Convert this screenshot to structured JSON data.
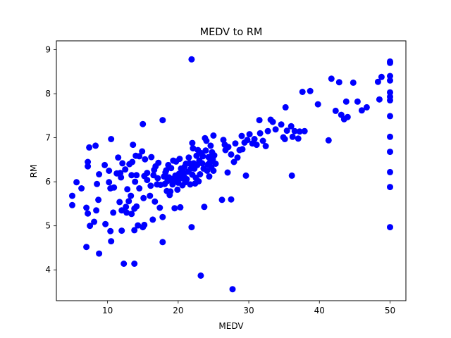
{
  "chart_data": {
    "type": "scatter",
    "title": "MEDV to RM",
    "xlabel": "MEDV",
    "ylabel": "RM",
    "xlim": [
      2.75,
      52.25
    ],
    "ylim": [
      3.3,
      9.2
    ],
    "xticks": [
      10,
      20,
      30,
      40,
      50
    ],
    "yticks": [
      4,
      5,
      6,
      7,
      8,
      9
    ],
    "grid": false,
    "marker_color": "#0000ff",
    "points": [
      [
        5.0,
        5.68
      ],
      [
        5.0,
        5.47
      ],
      [
        5.6,
        5.99
      ],
      [
        6.3,
        5.85
      ],
      [
        7.0,
        4.52
      ],
      [
        7.0,
        5.41
      ],
      [
        7.2,
        5.28
      ],
      [
        7.2,
        6.45
      ],
      [
        7.2,
        6.35
      ],
      [
        7.4,
        6.78
      ],
      [
        7.5,
        5.0
      ],
      [
        8.1,
        5.09
      ],
      [
        8.3,
        6.82
      ],
      [
        8.4,
        5.35
      ],
      [
        8.5,
        5.95
      ],
      [
        8.7,
        5.59
      ],
      [
        8.8,
        6.17
      ],
      [
        8.8,
        4.37
      ],
      [
        9.6,
        6.38
      ],
      [
        9.7,
        5.04
      ],
      [
        10.2,
        5.99
      ],
      [
        10.2,
        6.25
      ],
      [
        10.4,
        5.85
      ],
      [
        10.4,
        4.88
      ],
      [
        10.5,
        6.97
      ],
      [
        10.5,
        4.65
      ],
      [
        10.8,
        5.3
      ],
      [
        10.9,
        5.87
      ],
      [
        11.3,
        6.19
      ],
      [
        11.5,
        6.55
      ],
      [
        11.7,
        5.54
      ],
      [
        11.8,
        6.2
      ],
      [
        11.9,
        6.1
      ],
      [
        12.0,
        5.35
      ],
      [
        12.0,
        4.89
      ],
      [
        12.1,
        6.42
      ],
      [
        12.3,
        4.14
      ],
      [
        12.5,
        6.28
      ],
      [
        12.6,
        5.43
      ],
      [
        12.7,
        5.3
      ],
      [
        12.8,
        5.83
      ],
      [
        13.0,
        5.56
      ],
      [
        13.1,
        6.4
      ],
      [
        13.3,
        5.68
      ],
      [
        13.4,
        6.15
      ],
      [
        13.4,
        5.27
      ],
      [
        13.5,
        6.45
      ],
      [
        13.6,
        6.84
      ],
      [
        13.8,
        4.14
      ],
      [
        13.8,
        4.9
      ],
      [
        13.8,
        5.39
      ],
      [
        13.9,
        6.0
      ],
      [
        14.0,
        6.59
      ],
      [
        14.1,
        6.15
      ],
      [
        14.1,
        5.44
      ],
      [
        14.3,
        5.01
      ],
      [
        14.5,
        5.85
      ],
      [
        14.5,
        6.58
      ],
      [
        14.9,
        6.69
      ],
      [
        15.0,
        4.97
      ],
      [
        15.0,
        7.31
      ],
      [
        15.1,
        5.63
      ],
      [
        15.2,
        6.13
      ],
      [
        15.2,
        5.02
      ],
      [
        15.3,
        6.51
      ],
      [
        15.6,
        6.2
      ],
      [
        15.6,
        6.04
      ],
      [
        16.0,
        5.68
      ],
      [
        16.1,
        5.91
      ],
      [
        16.2,
        6.56
      ],
      [
        16.4,
        5.14
      ],
      [
        16.5,
        6.15
      ],
      [
        16.6,
        6.27
      ],
      [
        16.7,
        5.55
      ],
      [
        16.8,
        6.35
      ],
      [
        17.0,
        5.94
      ],
      [
        17.1,
        6.08
      ],
      [
        17.2,
        6.43
      ],
      [
        17.4,
        5.41
      ],
      [
        17.5,
        5.93
      ],
      [
        17.8,
        4.63
      ],
      [
        17.8,
        7.4
      ],
      [
        17.8,
        5.2
      ],
      [
        18.0,
        6.12
      ],
      [
        18.1,
        5.95
      ],
      [
        18.2,
        6.21
      ],
      [
        18.3,
        6.26
      ],
      [
        18.4,
        5.79
      ],
      [
        18.5,
        6.02
      ],
      [
        18.6,
        6.38
      ],
      [
        18.7,
        6.1
      ],
      [
        18.8,
        5.7
      ],
      [
        18.9,
        5.78
      ],
      [
        19.0,
        6.31
      ],
      [
        19.1,
        6.06
      ],
      [
        19.2,
        5.94
      ],
      [
        19.3,
        6.48
      ],
      [
        19.4,
        6.02
      ],
      [
        19.5,
        5.4
      ],
      [
        19.6,
        6.14
      ],
      [
        19.7,
        6.46
      ],
      [
        19.8,
        6.1
      ],
      [
        19.9,
        5.82
      ],
      [
        20.0,
        5.98
      ],
      [
        20.1,
        6.18
      ],
      [
        20.2,
        6.52
      ],
      [
        20.3,
        5.42
      ],
      [
        20.4,
        6.3
      ],
      [
        20.5,
        6.08
      ],
      [
        20.6,
        5.92
      ],
      [
        20.7,
        6.22
      ],
      [
        20.8,
        6.13
      ],
      [
        20.9,
        6.34
      ],
      [
        21.0,
        5.99
      ],
      [
        21.1,
        6.41
      ],
      [
        21.2,
        6.06
      ],
      [
        21.4,
        6.23
      ],
      [
        21.5,
        6.55
      ],
      [
        21.6,
        6.42
      ],
      [
        21.7,
        5.94
      ],
      [
        21.8,
        6.3
      ],
      [
        21.9,
        8.78
      ],
      [
        21.9,
        4.97
      ],
      [
        22.0,
        6.88
      ],
      [
        22.0,
        6.16
      ],
      [
        22.1,
        6.76
      ],
      [
        22.2,
        6.42
      ],
      [
        22.3,
        6.3
      ],
      [
        22.4,
        5.96
      ],
      [
        22.5,
        6.09
      ],
      [
        22.6,
        6.59
      ],
      [
        22.7,
        6.38
      ],
      [
        22.8,
        6.72
      ],
      [
        22.9,
        6.01
      ],
      [
        23.0,
        6.48
      ],
      [
        23.1,
        6.17
      ],
      [
        23.2,
        3.87
      ],
      [
        23.3,
        6.65
      ],
      [
        23.4,
        6.42
      ],
      [
        23.5,
        6.58
      ],
      [
        23.6,
        6.3
      ],
      [
        23.7,
        5.43
      ],
      [
        23.8,
        6.99
      ],
      [
        23.9,
        6.71
      ],
      [
        24.0,
        6.93
      ],
      [
        24.1,
        6.25
      ],
      [
        24.2,
        6.39
      ],
      [
        24.3,
        6.56
      ],
      [
        24.4,
        6.12
      ],
      [
        24.5,
        6.44
      ],
      [
        24.6,
        6.82
      ],
      [
        24.7,
        6.33
      ],
      [
        24.8,
        6.67
      ],
      [
        24.9,
        6.51
      ],
      [
        25.0,
        6.25
      ],
      [
        25.0,
        7.05
      ],
      [
        25.1,
        6.6
      ],
      [
        25.3,
        6.41
      ],
      [
        26.2,
        5.59
      ],
      [
        26.4,
        6.95
      ],
      [
        26.6,
        6.84
      ],
      [
        26.7,
        6.72
      ],
      [
        27.0,
        6.21
      ],
      [
        27.1,
        6.79
      ],
      [
        27.5,
        6.62
      ],
      [
        27.5,
        5.6
      ],
      [
        27.9,
        6.45
      ],
      [
        28.1,
        6.87
      ],
      [
        28.4,
        6.55
      ],
      [
        28.7,
        6.72
      ],
      [
        29.0,
        7.04
      ],
      [
        29.1,
        6.74
      ],
      [
        29.4,
        6.89
      ],
      [
        29.6,
        6.14
      ],
      [
        29.8,
        6.95
      ],
      [
        30.1,
        7.08
      ],
      [
        30.5,
        6.87
      ],
      [
        30.8,
        6.97
      ],
      [
        31.1,
        6.84
      ],
      [
        31.5,
        7.4
      ],
      [
        31.6,
        7.1
      ],
      [
        32.0,
        6.93
      ],
      [
        32.4,
        6.81
      ],
      [
        32.7,
        7.15
      ],
      [
        33.1,
        7.41
      ],
      [
        33.4,
        7.36
      ],
      [
        33.8,
        7.19
      ],
      [
        34.6,
        7.3
      ],
      [
        34.9,
        7.01
      ],
      [
        35.1,
        6.97
      ],
      [
        35.2,
        7.69
      ],
      [
        35.4,
        7.16
      ],
      [
        36.0,
        7.26
      ],
      [
        36.1,
        6.14
      ],
      [
        36.2,
        7.02
      ],
      [
        36.5,
        7.15
      ],
      [
        37.0,
        6.98
      ],
      [
        37.2,
        7.14
      ],
      [
        37.6,
        8.04
      ],
      [
        37.9,
        7.15
      ],
      [
        38.7,
        8.06
      ],
      [
        39.8,
        7.76
      ],
      [
        41.3,
        6.94
      ],
      [
        41.7,
        8.34
      ],
      [
        42.3,
        7.61
      ],
      [
        42.8,
        8.26
      ],
      [
        43.1,
        7.52
      ],
      [
        43.5,
        7.42
      ],
      [
        43.8,
        7.82
      ],
      [
        44.0,
        7.47
      ],
      [
        44.8,
        8.25
      ],
      [
        45.4,
        7.82
      ],
      [
        46.0,
        7.62
      ],
      [
        46.7,
        7.69
      ],
      [
        48.3,
        8.27
      ],
      [
        48.5,
        7.87
      ],
      [
        48.8,
        8.38
      ],
      [
        50.0,
        8.73
      ],
      [
        50.0,
        8.7
      ],
      [
        50.0,
        8.4
      ],
      [
        50.0,
        8.3
      ],
      [
        50.0,
        8.03
      ],
      [
        50.0,
        7.93
      ],
      [
        50.0,
        7.85
      ],
      [
        50.0,
        7.49
      ],
      [
        50.0,
        7.02
      ],
      [
        50.0,
        6.68
      ],
      [
        50.0,
        6.22
      ],
      [
        50.0,
        5.88
      ],
      [
        50.0,
        4.97
      ],
      [
        27.7,
        3.56
      ]
    ]
  }
}
